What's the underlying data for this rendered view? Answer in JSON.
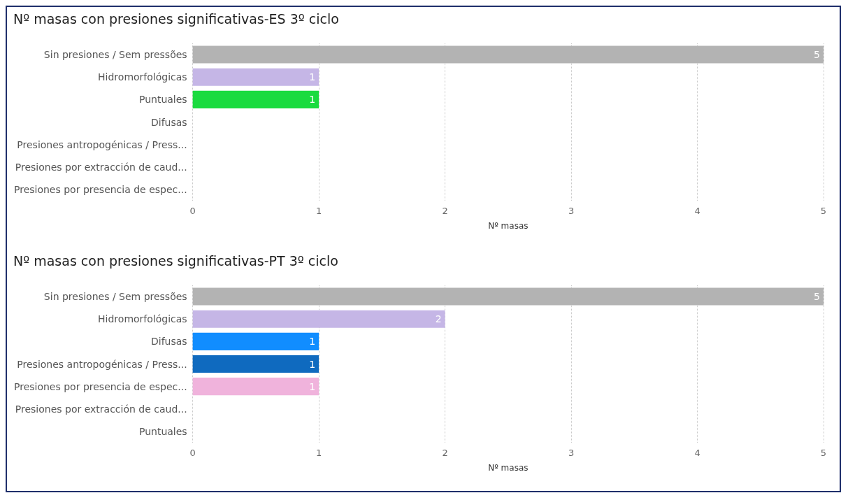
{
  "chart_data": [
    {
      "type": "bar",
      "orientation": "horizontal",
      "title": "Nº masas con presiones significativas-ES 3º ciclo",
      "xlabel": "Nº masas",
      "categories": [
        "Sin presiones / Sem pressões",
        "Hidromorfológicas",
        "Puntuales",
        "Difusas",
        "Presiones antropogénicas / Press...",
        "Presiones por extracción de caud...",
        "Presiones por presencia de espec..."
      ],
      "values": [
        5,
        1,
        1,
        null,
        null,
        null,
        null
      ],
      "colors": [
        "#b3b3b3",
        "#c5b6e6",
        "#1adb3f",
        null,
        null,
        null,
        null
      ],
      "xlim": [
        0,
        5
      ],
      "xticks": [
        0,
        1,
        2,
        3,
        4,
        5
      ],
      "grid": "x",
      "data_labels": true
    },
    {
      "type": "bar",
      "orientation": "horizontal",
      "title": "Nº masas con presiones significativas-PT 3º ciclo",
      "xlabel": "Nº masas",
      "categories": [
        "Sin presiones / Sem pressões",
        "Hidromorfológicas",
        "Difusas",
        "Presiones antropogénicas / Press...",
        "Presiones por presencia de espec...",
        "Presiones por extracción de caud...",
        "Puntuales"
      ],
      "values": [
        5,
        2,
        1,
        1,
        1,
        null,
        null
      ],
      "colors": [
        "#b3b3b3",
        "#c5b6e6",
        "#118dff",
        "#0f6abf",
        "#f0b3dc",
        null,
        null
      ],
      "xlim": [
        0,
        5
      ],
      "xticks": [
        0,
        1,
        2,
        3,
        4,
        5
      ],
      "grid": "x",
      "data_labels": true
    }
  ]
}
